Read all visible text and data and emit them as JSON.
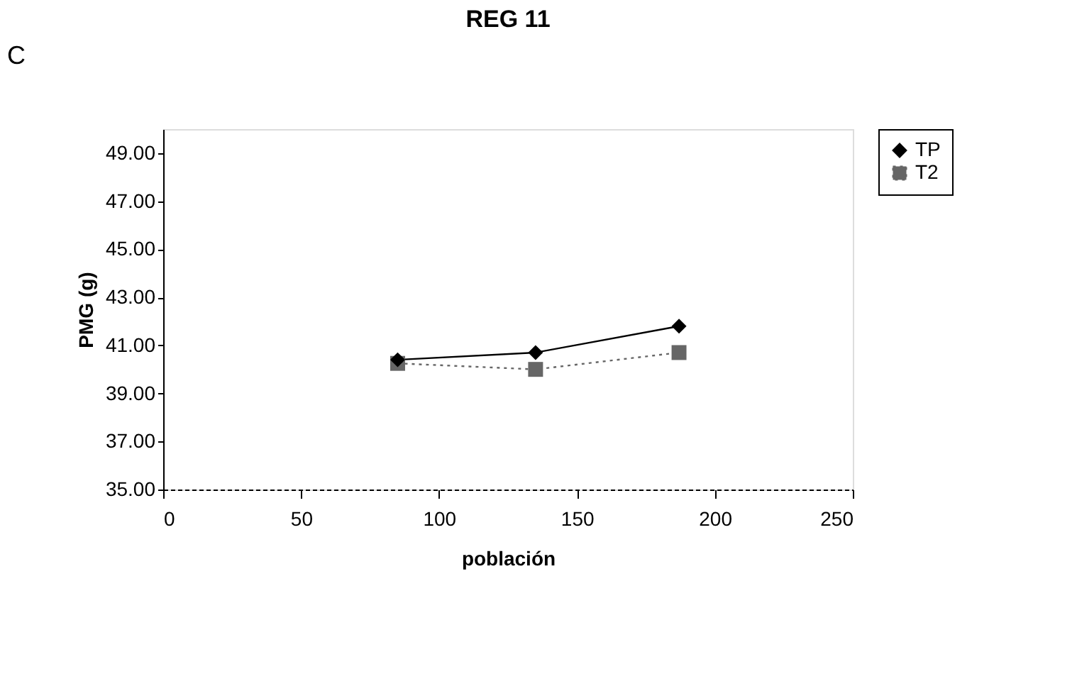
{
  "chart_data": {
    "type": "line",
    "title": "REG 11",
    "xlabel": "población",
    "ylabel": "PMG (g)",
    "annotations": [
      "C"
    ],
    "x": [
      85,
      135,
      187
    ],
    "series": [
      {
        "name": "TP",
        "color": "#000000",
        "values": [
          40.4,
          40.7,
          41.8
        ],
        "marker": "diamond",
        "line_style": "solid"
      },
      {
        "name": "T2",
        "color": "#666666",
        "values": [
          40.25,
          40.0,
          40.7
        ],
        "marker": "square",
        "line_style": "dotted"
      }
    ],
    "xlim": [
      0,
      250
    ],
    "xticks": [
      0,
      50,
      100,
      150,
      200,
      250
    ],
    "ylim": [
      35,
      50
    ],
    "yticks": [
      {
        "value": 35,
        "label": "35.00"
      },
      {
        "value": 37,
        "label": "37.00"
      },
      {
        "value": 39,
        "label": "39.00"
      },
      {
        "value": 41,
        "label": "41.00"
      },
      {
        "value": 43,
        "label": "43.00"
      },
      {
        "value": 45,
        "label": "45.00"
      },
      {
        "value": 47,
        "label": "47.00"
      },
      {
        "value": 49,
        "label": "49.00"
      }
    ],
    "grid": false,
    "legend": "right"
  }
}
